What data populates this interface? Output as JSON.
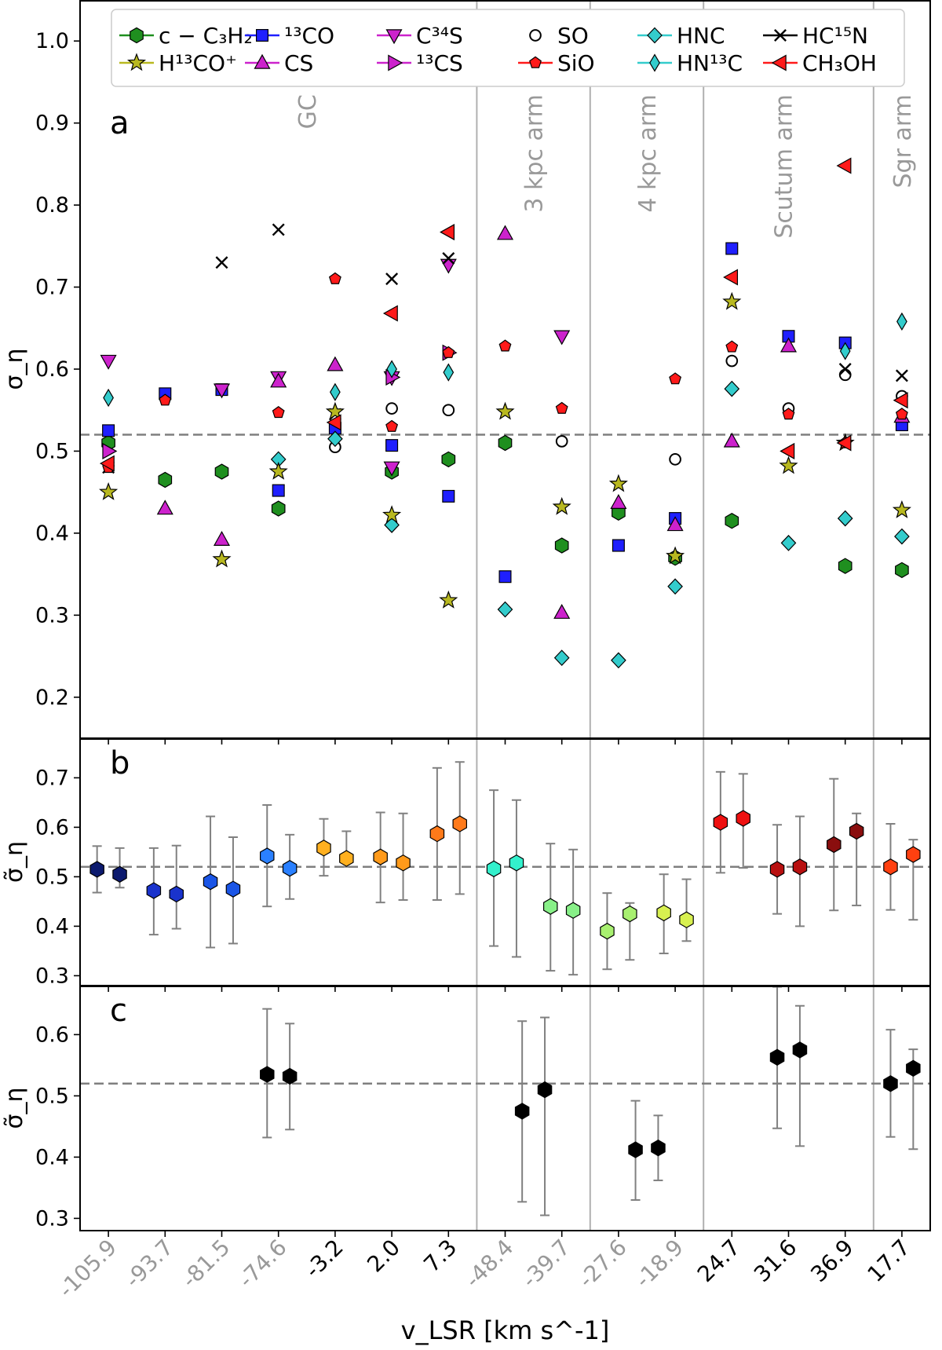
{
  "chart_data": {
    "type": "scatter",
    "xlabel": "v_LSR [km s^-1]",
    "categories": [
      "-105.9",
      "-93.7",
      "-81.5",
      "-74.6",
      "-3.2",
      "2.0",
      "7.3",
      "-48.4",
      "-39.7",
      "-27.6",
      "-18.9",
      "24.7",
      "31.6",
      "36.9",
      "17.7"
    ],
    "category_colors": [
      "#999999",
      "#999999",
      "#999999",
      "#999999",
      "#000000",
      "#000000",
      "#000000",
      "#999999",
      "#999999",
      "#999999",
      "#999999",
      "#000000",
      "#000000",
      "#000000",
      "#000000"
    ],
    "dividers_after_category": [
      6,
      8,
      10,
      13
    ],
    "region_labels": [
      {
        "text": "GC",
        "category": 3.5
      },
      {
        "text": "3 kpc arm",
        "category": 7.5
      },
      {
        "text": "4 kpc arm",
        "category": 9.5
      },
      {
        "text": "Scutum arm",
        "category": 11.9
      },
      {
        "text": "Sgr arm",
        "category": 14.0
      }
    ],
    "reference_line": 0.52,
    "legend": [
      {
        "key": "cC3H2",
        "label": "c − C₃H₂",
        "marker": "hexagon",
        "color": "#1f8f1f",
        "line": "#1f8f1f"
      },
      {
        "key": "13CO",
        "label": "¹³CO",
        "marker": "square",
        "color": "#1f1fff",
        "line": "#1f1fff"
      },
      {
        "key": "C34S",
        "label": "C³⁴S",
        "marker": "triangle-down",
        "color": "#cc22cc",
        "line": "#cc22cc"
      },
      {
        "key": "SO",
        "label": "SO",
        "marker": "circle-open",
        "color": "#000000",
        "line": "none"
      },
      {
        "key": "HNC",
        "label": "HNC",
        "marker": "diamond",
        "color": "#33cccc",
        "line": "#33cccc"
      },
      {
        "key": "HC15N",
        "label": "HC¹⁵N",
        "marker": "x",
        "color": "#000000",
        "line": "#000000"
      },
      {
        "key": "H13CO",
        "label": "H¹³CO⁺",
        "marker": "star",
        "color": "#b8b820",
        "line": "#b8b820"
      },
      {
        "key": "CS",
        "label": "CS",
        "marker": "triangle-up",
        "color": "#cc22cc",
        "line": "#cc22cc"
      },
      {
        "key": "13CS",
        "label": "¹³CS",
        "marker": "triangle-right",
        "color": "#cc22cc",
        "line": "#cc22cc"
      },
      {
        "key": "SiO",
        "label": "SiO",
        "marker": "pentagon",
        "color": "#ff1a1a",
        "line": "#ff1a1a"
      },
      {
        "key": "HN13C",
        "label": "HN¹³C",
        "marker": "thin-diamond",
        "color": "#33cccc",
        "line": "#33cccc"
      },
      {
        "key": "CH3OH",
        "label": "CH₃OH",
        "marker": "triangle-left",
        "color": "#ff1a1a",
        "line": "#ff1a1a"
      }
    ],
    "panels": [
      {
        "label": "a",
        "ylabel": "σ_η",
        "ylim": [
          0.15,
          1.05
        ],
        "yticks": [
          0.2,
          0.3,
          0.4,
          0.5,
          0.6,
          0.7,
          0.8,
          0.9,
          1.0
        ],
        "series": [
          {
            "key": "cC3H2",
            "points": [
              [
                0,
                0.51
              ],
              [
                1,
                0.465
              ],
              [
                2,
                0.475
              ],
              [
                3,
                0.43
              ],
              [
                5,
                0.475
              ],
              [
                6,
                0.49
              ],
              [
                7,
                0.51
              ],
              [
                8,
                0.385
              ],
              [
                9,
                0.425
              ],
              [
                10,
                0.37
              ],
              [
                11,
                0.415
              ],
              [
                13,
                0.36
              ],
              [
                14,
                0.355
              ]
            ]
          },
          {
            "key": "13CO",
            "points": [
              [
                0,
                0.525
              ],
              [
                1,
                0.57
              ],
              [
                2,
                0.575
              ],
              [
                3,
                0.452
              ],
              [
                4,
                0.528
              ],
              [
                5,
                0.507
              ],
              [
                6,
                0.445
              ],
              [
                7,
                0.347
              ],
              [
                9,
                0.385
              ],
              [
                10,
                0.418
              ],
              [
                11,
                0.747
              ],
              [
                12,
                0.64
              ],
              [
                13,
                0.632
              ],
              [
                14,
                0.532
              ]
            ]
          },
          {
            "key": "C34S",
            "points": [
              [
                0,
                0.61
              ],
              [
                2,
                0.575
              ],
              [
                3,
                0.59
              ],
              [
                5,
                0.59
              ],
              [
                5,
                0.48
              ],
              [
                6,
                0.727
              ],
              [
                8,
                0.64
              ]
            ]
          },
          {
            "key": "SO",
            "points": [
              [
                4,
                0.505
              ],
              [
                5,
                0.552
              ],
              [
                6,
                0.55
              ],
              [
                8,
                0.512
              ],
              [
                10,
                0.49
              ],
              [
                11,
                0.61
              ],
              [
                12,
                0.552
              ],
              [
                13,
                0.593
              ],
              [
                14,
                0.567
              ]
            ]
          },
          {
            "key": "HNC",
            "points": [
              [
                3,
                0.49
              ],
              [
                4,
                0.515
              ],
              [
                5,
                0.41
              ],
              [
                7,
                0.307
              ],
              [
                8,
                0.248
              ],
              [
                9,
                0.245
              ],
              [
                10,
                0.335
              ],
              [
                11,
                0.576
              ],
              [
                12,
                0.388
              ],
              [
                13,
                0.418
              ],
              [
                14,
                0.396
              ]
            ]
          },
          {
            "key": "HC15N",
            "points": [
              [
                0,
                0.48
              ],
              [
                2,
                0.73
              ],
              [
                3,
                0.77
              ],
              [
                4,
                0.545
              ],
              [
                5,
                0.71
              ],
              [
                6,
                0.735
              ],
              [
                13,
                0.6
              ],
              [
                14,
                0.592
              ]
            ]
          },
          {
            "key": "H13CO",
            "points": [
              [
                0,
                0.45
              ],
              [
                2,
                0.368
              ],
              [
                3,
                0.475
              ],
              [
                4,
                0.548
              ],
              [
                5,
                0.422
              ],
              [
                6,
                0.318
              ],
              [
                7,
                0.548
              ],
              [
                8,
                0.432
              ],
              [
                9,
                0.46
              ],
              [
                10,
                0.372
              ],
              [
                11,
                0.682
              ],
              [
                12,
                0.482
              ],
              [
                13,
                0.51
              ],
              [
                14,
                0.428
              ]
            ]
          },
          {
            "key": "CS",
            "points": [
              [
                1,
                0.43
              ],
              [
                2,
                0.392
              ],
              [
                3,
                0.585
              ],
              [
                4,
                0.605
              ],
              [
                7,
                0.765
              ],
              [
                8,
                0.303
              ],
              [
                9,
                0.437
              ],
              [
                10,
                0.41
              ],
              [
                11,
                0.512
              ],
              [
                12,
                0.628
              ],
              [
                14,
                0.542
              ]
            ]
          },
          {
            "key": "13CS",
            "points": [
              [
                0,
                0.5
              ],
              [
                5,
                0.59
              ],
              [
                6,
                0.62
              ]
            ]
          },
          {
            "key": "SiO",
            "points": [
              [
                0,
                0.48
              ],
              [
                1,
                0.562
              ],
              [
                3,
                0.547
              ],
              [
                4,
                0.71
              ],
              [
                5,
                0.53
              ],
              [
                6,
                0.62
              ],
              [
                7,
                0.628
              ],
              [
                8,
                0.552
              ],
              [
                10,
                0.588
              ],
              [
                11,
                0.627
              ],
              [
                12,
                0.545
              ],
              [
                13,
                0.51
              ],
              [
                14,
                0.545
              ]
            ]
          },
          {
            "key": "HN13C",
            "points": [
              [
                0,
                0.565
              ],
              [
                4,
                0.572
              ],
              [
                5,
                0.6
              ],
              [
                6,
                0.596
              ],
              [
                13,
                0.622
              ],
              [
                14,
                0.658
              ]
            ]
          },
          {
            "key": "CH3OH",
            "points": [
              [
                0,
                0.485
              ],
              [
                4,
                0.535
              ],
              [
                5,
                0.668
              ],
              [
                6,
                0.767
              ],
              [
                11,
                0.712
              ],
              [
                12,
                0.5
              ],
              [
                13,
                0.848
              ],
              [
                13,
                0.51
              ],
              [
                14,
                0.562
              ]
            ]
          }
        ]
      },
      {
        "label": "b",
        "ylabel": "σ̃_η",
        "ylim": [
          0.28,
          0.78
        ],
        "yticks": [
          0.3,
          0.4,
          0.5,
          0.6,
          0.7
        ],
        "points": [
          {
            "x": -0.2,
            "y": 0.515,
            "lo": 0.468,
            "hi": 0.562,
            "color": "#0c1a6e"
          },
          {
            "x": 0.2,
            "y": 0.505,
            "lo": 0.478,
            "hi": 0.558,
            "color": "#0c1a6e"
          },
          {
            "x": 0.8,
            "y": 0.472,
            "lo": 0.383,
            "hi": 0.558,
            "color": "#1a33cc"
          },
          {
            "x": 1.2,
            "y": 0.465,
            "lo": 0.395,
            "hi": 0.563,
            "color": "#1a33cc"
          },
          {
            "x": 1.8,
            "y": 0.49,
            "lo": 0.357,
            "hi": 0.622,
            "color": "#1a55e6"
          },
          {
            "x": 2.2,
            "y": 0.475,
            "lo": 0.365,
            "hi": 0.58,
            "color": "#1a55e6"
          },
          {
            "x": 2.8,
            "y": 0.542,
            "lo": 0.44,
            "hi": 0.645,
            "color": "#2a80ff"
          },
          {
            "x": 3.2,
            "y": 0.517,
            "lo": 0.455,
            "hi": 0.585,
            "color": "#2a80ff"
          },
          {
            "x": 3.8,
            "y": 0.558,
            "lo": 0.502,
            "hi": 0.617,
            "color": "#ffb020"
          },
          {
            "x": 4.2,
            "y": 0.537,
            "lo": 0.52,
            "hi": 0.592,
            "color": "#ffb020"
          },
          {
            "x": 4.8,
            "y": 0.54,
            "lo": 0.448,
            "hi": 0.63,
            "color": "#ff9a1a"
          },
          {
            "x": 5.2,
            "y": 0.528,
            "lo": 0.453,
            "hi": 0.628,
            "color": "#ff9a1a"
          },
          {
            "x": 5.8,
            "y": 0.587,
            "lo": 0.453,
            "hi": 0.72,
            "color": "#ff7a1a"
          },
          {
            "x": 6.2,
            "y": 0.607,
            "lo": 0.465,
            "hi": 0.732,
            "color": "#ff7a1a"
          },
          {
            "x": 6.8,
            "y": 0.516,
            "lo": 0.36,
            "hi": 0.675,
            "color": "#33f0cc"
          },
          {
            "x": 7.2,
            "y": 0.528,
            "lo": 0.338,
            "hi": 0.655,
            "color": "#33f0cc"
          },
          {
            "x": 7.8,
            "y": 0.44,
            "lo": 0.31,
            "hi": 0.567,
            "color": "#88f088"
          },
          {
            "x": 8.2,
            "y": 0.432,
            "lo": 0.302,
            "hi": 0.555,
            "color": "#88f088"
          },
          {
            "x": 8.8,
            "y": 0.39,
            "lo": 0.313,
            "hi": 0.467,
            "color": "#a8f070"
          },
          {
            "x": 9.2,
            "y": 0.425,
            "lo": 0.332,
            "hi": 0.447,
            "color": "#a8f070"
          },
          {
            "x": 9.8,
            "y": 0.427,
            "lo": 0.345,
            "hi": 0.505,
            "color": "#d8f050"
          },
          {
            "x": 10.2,
            "y": 0.413,
            "lo": 0.37,
            "hi": 0.495,
            "color": "#d8f050"
          },
          {
            "x": 10.8,
            "y": 0.61,
            "lo": 0.508,
            "hi": 0.712,
            "color": "#ee1010"
          },
          {
            "x": 11.2,
            "y": 0.618,
            "lo": 0.518,
            "hi": 0.708,
            "color": "#ee1010"
          },
          {
            "x": 11.8,
            "y": 0.515,
            "lo": 0.425,
            "hi": 0.605,
            "color": "#b81010"
          },
          {
            "x": 12.2,
            "y": 0.52,
            "lo": 0.4,
            "hi": 0.622,
            "color": "#b81010"
          },
          {
            "x": 12.8,
            "y": 0.565,
            "lo": 0.432,
            "hi": 0.698,
            "color": "#8a0e0e"
          },
          {
            "x": 13.2,
            "y": 0.592,
            "lo": 0.442,
            "hi": 0.628,
            "color": "#8a0e0e"
          },
          {
            "x": 13.8,
            "y": 0.52,
            "lo": 0.433,
            "hi": 0.607,
            "color": "#ff4010"
          },
          {
            "x": 14.2,
            "y": 0.545,
            "lo": 0.413,
            "hi": 0.575,
            "color": "#ff4010"
          }
        ]
      },
      {
        "label": "c",
        "ylabel": "σ̃_η",
        "ylim": [
          0.28,
          0.68
        ],
        "yticks": [
          0.3,
          0.4,
          0.5,
          0.6
        ],
        "points": [
          {
            "x": 2.8,
            "y": 0.535,
            "lo": 0.432,
            "hi": 0.642,
            "color": "#000000"
          },
          {
            "x": 3.2,
            "y": 0.532,
            "lo": 0.445,
            "hi": 0.618,
            "color": "#000000"
          },
          {
            "x": 7.3,
            "y": 0.475,
            "lo": 0.327,
            "hi": 0.622,
            "color": "#000000"
          },
          {
            "x": 7.7,
            "y": 0.51,
            "lo": 0.305,
            "hi": 0.628,
            "color": "#000000"
          },
          {
            "x": 9.3,
            "y": 0.412,
            "lo": 0.33,
            "hi": 0.492,
            "color": "#000000"
          },
          {
            "x": 9.7,
            "y": 0.415,
            "lo": 0.362,
            "hi": 0.468,
            "color": "#000000"
          },
          {
            "x": 11.8,
            "y": 0.563,
            "lo": 0.447,
            "hi": 0.678,
            "color": "#000000"
          },
          {
            "x": 12.2,
            "y": 0.575,
            "lo": 0.418,
            "hi": 0.647,
            "color": "#000000"
          },
          {
            "x": 13.8,
            "y": 0.52,
            "lo": 0.433,
            "hi": 0.608,
            "color": "#000000"
          },
          {
            "x": 14.2,
            "y": 0.545,
            "lo": 0.413,
            "hi": 0.576,
            "color": "#000000"
          }
        ]
      }
    ]
  }
}
